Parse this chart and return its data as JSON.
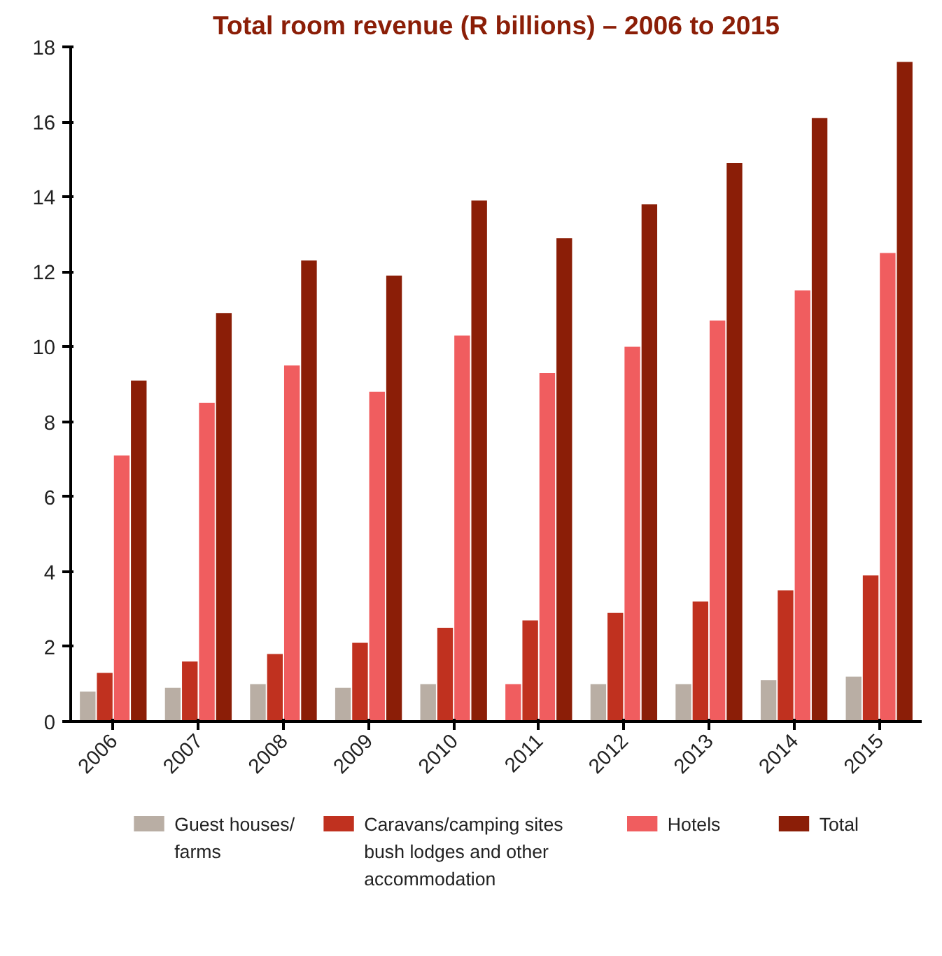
{
  "chart_data": {
    "type": "bar",
    "title": "Total room revenue (R billions) – 2006 to 2015",
    "categories": [
      "2006",
      "2007",
      "2008",
      "2009",
      "2010",
      "2011",
      "2012",
      "2013",
      "2014",
      "2015"
    ],
    "series": [
      {
        "name": "Guest houses/ farms",
        "color": "#b9aea4",
        "colors": [
          "#b9aea4",
          "#b9aea4",
          "#b9aea4",
          "#b9aea4",
          "#b9aea4",
          "#f05d5f",
          "#b9aea4",
          "#b9aea4",
          "#b9aea4",
          "#b9aea4"
        ],
        "values": [
          0.8,
          0.9,
          1.0,
          0.9,
          1.0,
          1.0,
          1.0,
          1.0,
          1.1,
          1.2
        ]
      },
      {
        "name": "Caravans/camping sites bush lodges and other accommodation",
        "color": "#c0311f",
        "values": [
          1.3,
          1.6,
          1.8,
          2.1,
          2.5,
          2.7,
          2.9,
          3.2,
          3.5,
          3.9
        ]
      },
      {
        "name": "Hotels",
        "color": "#f05d5f",
        "values": [
          7.1,
          8.5,
          9.5,
          8.8,
          10.3,
          9.3,
          10.0,
          10.7,
          11.5,
          12.5
        ]
      },
      {
        "name": "Total",
        "color": "#8b1e07",
        "values": [
          9.1,
          10.9,
          12.3,
          11.9,
          13.9,
          12.9,
          13.8,
          14.9,
          16.1,
          17.6
        ]
      }
    ],
    "ylim": [
      0,
      18
    ],
    "yticks": [
      0,
      2,
      4,
      6,
      8,
      10,
      12,
      14,
      16,
      18
    ],
    "grid": false,
    "legend": "bottom"
  }
}
